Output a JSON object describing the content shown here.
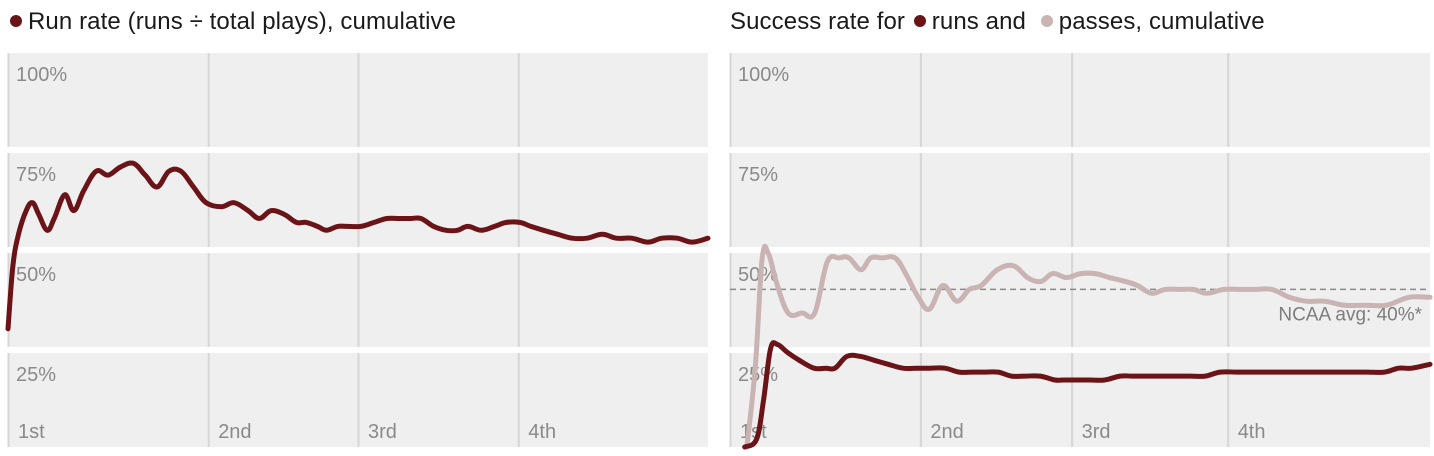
{
  "colors": {
    "background": "#ffffff",
    "band_fill": "#efefef",
    "gridline": "#d6d6d6",
    "axis_text": "#8a8a8a",
    "runs": "#6b1418",
    "passes": "#c9b3b3",
    "reference": "#8a8a8a"
  },
  "chart_data": [
    {
      "type": "line",
      "title": "Run rate (runs ÷ total plays), cumulative",
      "legend_marker": "dot",
      "ylim": [
        0,
        1
      ],
      "y_ticks": [
        "100%",
        "75%",
        "50%",
        "25%"
      ],
      "x_ticks": [
        "1st",
        "2nd",
        "3rd",
        "4th"
      ],
      "xlim": [
        0,
        100
      ],
      "x_tick_positions": [
        0,
        28.6,
        50,
        72.9
      ],
      "series": [
        {
          "color": "#6b1418",
          "x": [
            0,
            0.7,
            1.5,
            2.6,
            3.5,
            4.4,
            5.6,
            6.6,
            8.1,
            9.4,
            10.8,
            12.6,
            14.3,
            16,
            17.9,
            19.6,
            21.3,
            23,
            24.7,
            26.5,
            28.3,
            30.5,
            32.3,
            34.3,
            35.9,
            37.6,
            39.5,
            41.2,
            42.6,
            44.2,
            45.5,
            47.1,
            48.5,
            50.4,
            52.3,
            54.1,
            55.9,
            57.5,
            59,
            60.8,
            62.6,
            64.2,
            65.7,
            67.6,
            69.5,
            71.2,
            73.1,
            74.7,
            76.5,
            78.5,
            80.6,
            82.7,
            84.9,
            86.9,
            89.1,
            91.4,
            93.4,
            95.6,
            97.7,
            100
          ],
          "y": [
            0.3,
            0.46,
            0.54,
            0.6,
            0.62,
            0.59,
            0.55,
            0.58,
            0.64,
            0.6,
            0.65,
            0.7,
            0.69,
            0.71,
            0.72,
            0.69,
            0.66,
            0.7,
            0.7,
            0.66,
            0.62,
            0.61,
            0.62,
            0.6,
            0.58,
            0.6,
            0.59,
            0.57,
            0.57,
            0.56,
            0.55,
            0.56,
            0.56,
            0.56,
            0.57,
            0.58,
            0.58,
            0.58,
            0.58,
            0.56,
            0.55,
            0.55,
            0.56,
            0.55,
            0.56,
            0.57,
            0.57,
            0.56,
            0.55,
            0.54,
            0.53,
            0.53,
            0.54,
            0.53,
            0.53,
            0.52,
            0.53,
            0.53,
            0.52,
            0.53
          ]
        }
      ]
    },
    {
      "type": "line",
      "title": "Success rate for ● runs and ● passes, cumulative",
      "title_parts": [
        "Success rate for",
        "runs and",
        "passes, cumulative"
      ],
      "ylim": [
        0,
        1
      ],
      "y_ticks": [
        "100%",
        "75%",
        "50%",
        "25%"
      ],
      "x_ticks": [
        "1st",
        "2nd",
        "3rd",
        "4th"
      ],
      "xlim": [
        0,
        100
      ],
      "x_tick_positions": [
        0,
        27.2,
        48.8,
        71.1
      ],
      "reference_line": {
        "y": 0.4,
        "label": "NCAA avg: 40%*"
      },
      "series": [
        {
          "name": "runs",
          "color": "#6b1418",
          "x": [
            2.1,
            3.8,
            4.8,
            5.8,
            6.8,
            8.2,
            9.9,
            12,
            13.7,
            15,
            16.7,
            18.6,
            20.6,
            22.6,
            24.7,
            26.7,
            28.6,
            30.7,
            32.7,
            34.6,
            36.3,
            38.3,
            40.2,
            42.2,
            44.3,
            46.4,
            47.7,
            49.4,
            51.3,
            53.5,
            55.7,
            57.4,
            59.3,
            61.4,
            63.3,
            65.6,
            67.9,
            70,
            72.4,
            74.8,
            77.7,
            80.6,
            83.2,
            85.8,
            88.4,
            91,
            93.5,
            95.5,
            97.4,
            100
          ],
          "y": [
            0,
            0.02,
            0.12,
            0.25,
            0.26,
            0.24,
            0.22,
            0.2,
            0.2,
            0.2,
            0.23,
            0.23,
            0.22,
            0.21,
            0.2,
            0.2,
            0.2,
            0.2,
            0.19,
            0.19,
            0.19,
            0.19,
            0.18,
            0.18,
            0.18,
            0.17,
            0.17,
            0.17,
            0.17,
            0.17,
            0.18,
            0.18,
            0.18,
            0.18,
            0.18,
            0.18,
            0.18,
            0.19,
            0.19,
            0.19,
            0.19,
            0.19,
            0.19,
            0.19,
            0.19,
            0.19,
            0.19,
            0.2,
            0.2,
            0.21
          ]
        },
        {
          "name": "passes",
          "color": "#c9b3b3",
          "x": [
            2.4,
            3.6,
            4.6,
            5.5,
            6.6,
            8.3,
            10.3,
            12.1,
            13.9,
            15.6,
            17,
            18.7,
            20.1,
            21.8,
            23.6,
            25.1,
            26.9,
            28.5,
            30.4,
            32.4,
            34.2,
            35.9,
            38.2,
            40.5,
            42.5,
            44.4,
            46.1,
            48.1,
            50.1,
            52.2,
            54.2,
            56.5,
            58.2,
            60.2,
            62.2,
            64.4,
            66.2,
            68.1,
            70.6,
            73,
            74.9,
            77.4,
            79.9,
            82.3,
            84.9,
            87.8,
            90.7,
            93.8,
            97,
            100
          ],
          "y": [
            0,
            0.2,
            0.48,
            0.49,
            0.42,
            0.34,
            0.34,
            0.34,
            0.47,
            0.48,
            0.48,
            0.45,
            0.48,
            0.48,
            0.48,
            0.44,
            0.38,
            0.35,
            0.41,
            0.37,
            0.4,
            0.41,
            0.45,
            0.46,
            0.43,
            0.42,
            0.44,
            0.43,
            0.44,
            0.44,
            0.43,
            0.42,
            0.41,
            0.39,
            0.4,
            0.4,
            0.4,
            0.39,
            0.4,
            0.4,
            0.4,
            0.4,
            0.38,
            0.37,
            0.37,
            0.36,
            0.36,
            0.36,
            0.38,
            0.38
          ]
        }
      ]
    }
  ]
}
